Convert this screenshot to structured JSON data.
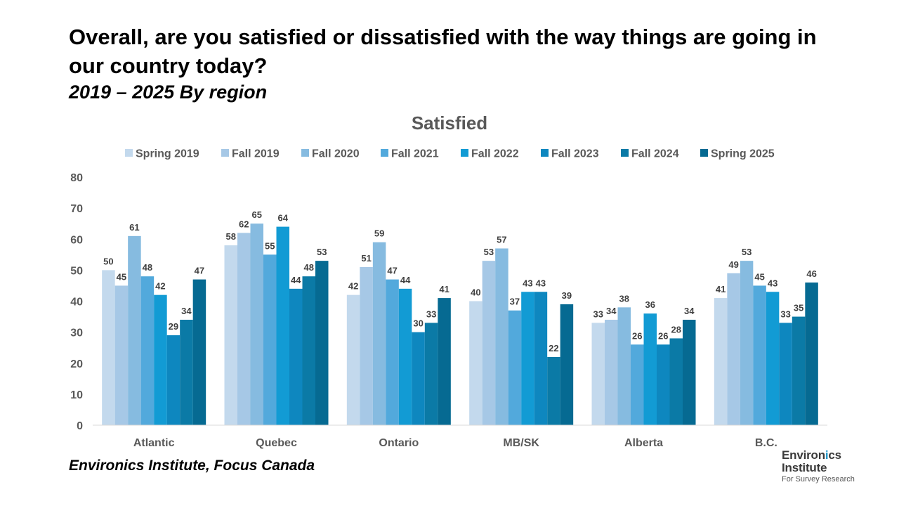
{
  "title": "Overall, are you satisfied or dissatisfied with the way things are going in our country today?",
  "subtitle": "2019 – 2025  By region",
  "source": "Environics Institute, Focus Canada",
  "logo": {
    "line1_a": "Environ",
    "line1_b": "i",
    "line1_c": "cs",
    "line2": "Institute",
    "line3": "For Survey Research"
  },
  "colors": {
    "series": [
      "#c3d9ed",
      "#a6c8e6",
      "#86bbe0",
      "#52a9dc",
      "#129bd4",
      "#0e87bf",
      "#0b7aa6",
      "#066a92"
    ],
    "axis_text": "#595959",
    "label_text": "#404040",
    "axis_line": "#d9d9d9"
  },
  "chart_data": {
    "type": "bar",
    "title": "Satisfied",
    "categories": [
      "Atlantic",
      "Quebec",
      "Ontario",
      "MB/SK",
      "Alberta",
      "B.C."
    ],
    "series": [
      {
        "name": "Spring 2019",
        "values": [
          50,
          58,
          42,
          40,
          33,
          41
        ]
      },
      {
        "name": "Fall 2019",
        "values": [
          45,
          62,
          51,
          53,
          34,
          49
        ]
      },
      {
        "name": "Fall 2020",
        "values": [
          61,
          65,
          59,
          57,
          38,
          53
        ]
      },
      {
        "name": "Fall 2021",
        "values": [
          48,
          55,
          47,
          37,
          26,
          45
        ]
      },
      {
        "name": "Fall 2022",
        "values": [
          42,
          64,
          44,
          43,
          36,
          43
        ]
      },
      {
        "name": "Fall 2023",
        "values": [
          29,
          44,
          30,
          43,
          26,
          33
        ]
      },
      {
        "name": "Fall 2024",
        "values": [
          34,
          48,
          33,
          22,
          28,
          35
        ]
      },
      {
        "name": "Spring 2025",
        "values": [
          47,
          53,
          41,
          39,
          34,
          46
        ]
      }
    ],
    "ylim": [
      0,
      80
    ],
    "yticks": [
      0,
      10,
      20,
      30,
      40,
      50,
      60,
      70,
      80
    ],
    "grid": false,
    "legend": "top",
    "xlabel": "",
    "ylabel": ""
  }
}
